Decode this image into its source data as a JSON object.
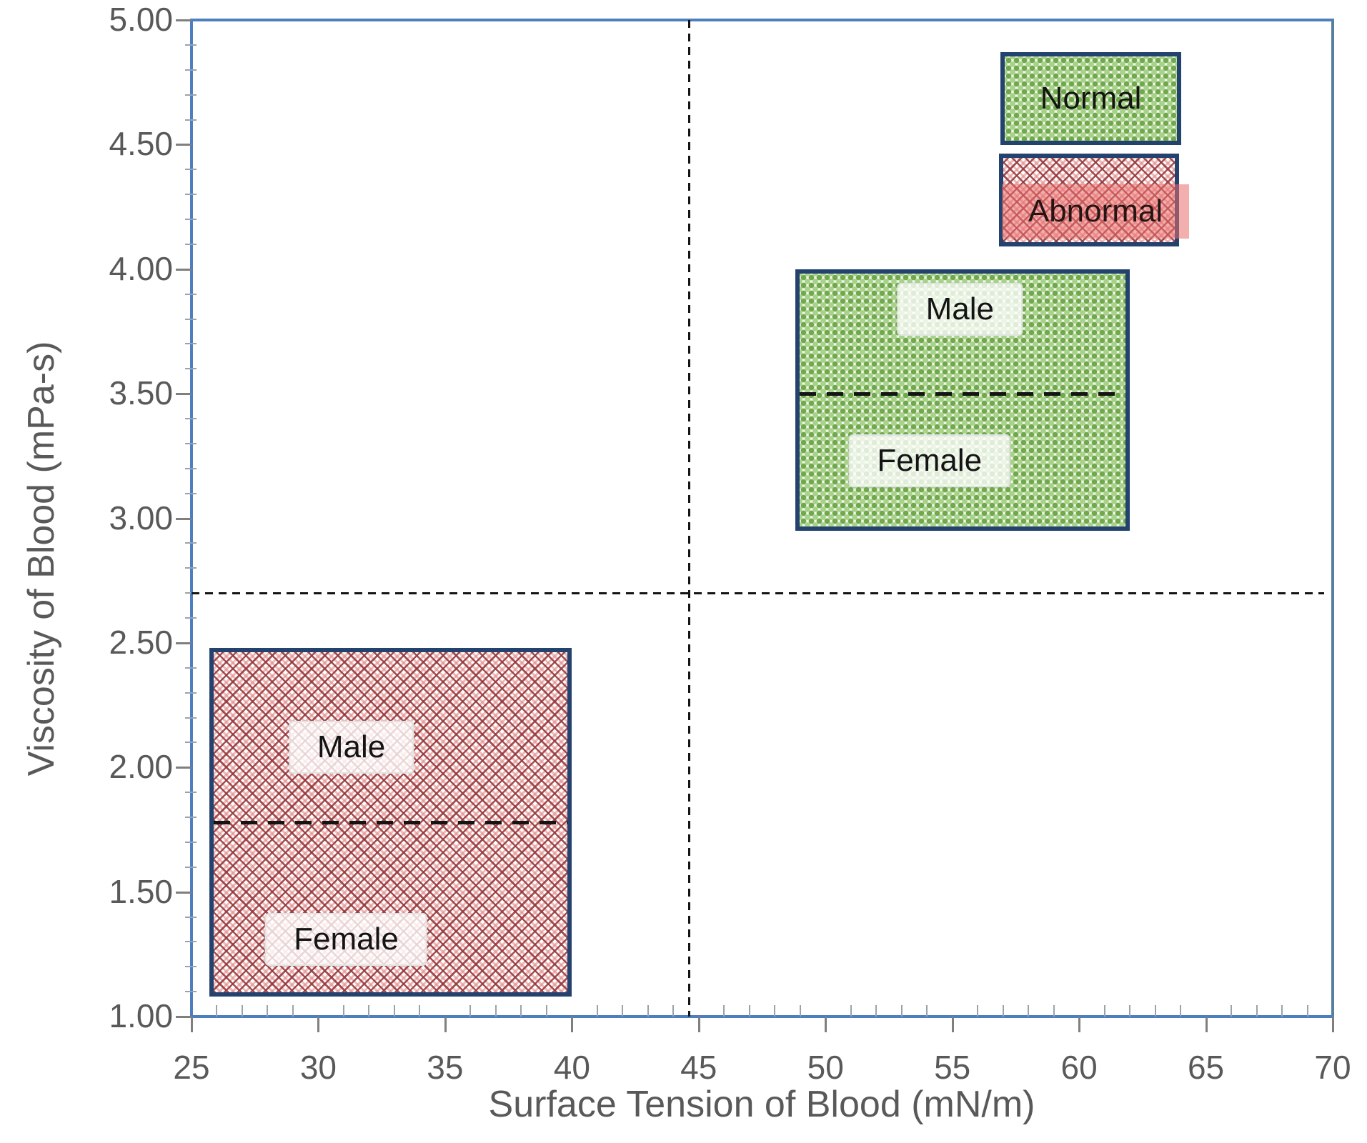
{
  "chart_data": {
    "type": "area",
    "title": "",
    "xlabel": "Surface Tension of Blood (mN/m)",
    "ylabel": "Viscosity of Blood (mPa-s)",
    "xlim": [
      25,
      70
    ],
    "ylim": [
      1.0,
      5.0
    ],
    "x_major_ticks": [
      25,
      30,
      35,
      40,
      45,
      50,
      55,
      60,
      65,
      70
    ],
    "x_minor_step": 1,
    "y_major_ticks": [
      5.0,
      4.5,
      4.0,
      3.5,
      3.0,
      2.5,
      2.0,
      1.5,
      1.0
    ],
    "y_tick_labels": [
      "5.00",
      "4.50",
      "4.00",
      "3.50",
      "3.00",
      "2.50",
      "2.00",
      "1.50",
      "1.00"
    ],
    "y_minor_step": 0.1,
    "grid": false,
    "legend_position": "top-right-inside",
    "regions": [
      {
        "name": "normal",
        "legend_label": "Normal",
        "pattern": "green-checker",
        "x_range": [
          48.8,
          62.0
        ],
        "y_range": [
          2.95,
          4.0
        ],
        "divider_y": 3.5,
        "labels": [
          {
            "text": "Male",
            "x": 55.3,
            "y": 3.84
          },
          {
            "text": "Female",
            "x": 54.1,
            "y": 3.23
          }
        ]
      },
      {
        "name": "abnormal",
        "legend_label": "Abnormal",
        "pattern": "red-lattice",
        "x_range": [
          25.7,
          40.0
        ],
        "y_range": [
          1.08,
          2.48
        ],
        "divider_y": 1.78,
        "labels": [
          {
            "text": "Male",
            "x": 31.3,
            "y": 2.08
          },
          {
            "text": "Female",
            "x": 31.1,
            "y": 1.31
          }
        ]
      }
    ],
    "reference_lines": {
      "vertical_x": 44.6,
      "horizontal_y": 2.7
    },
    "legend": [
      {
        "label": "Normal",
        "pattern": "green-checker",
        "highlight": false
      },
      {
        "label": "Abnormal",
        "pattern": "red-lattice",
        "highlight": true
      }
    ],
    "colors": {
      "axis_blue": "#4d7ebf",
      "frame_right_blue": "#587f9e",
      "tick_gray": "#7f7f7f",
      "label_gray": "#595959",
      "region_border_navy": "#24426e",
      "green_dot": "#6fa84d",
      "green_dot_light": "#a8d189",
      "red_lattice_line": "#96373a",
      "pink_highlight": "#e96e6c",
      "dash_black": "#141414"
    }
  }
}
